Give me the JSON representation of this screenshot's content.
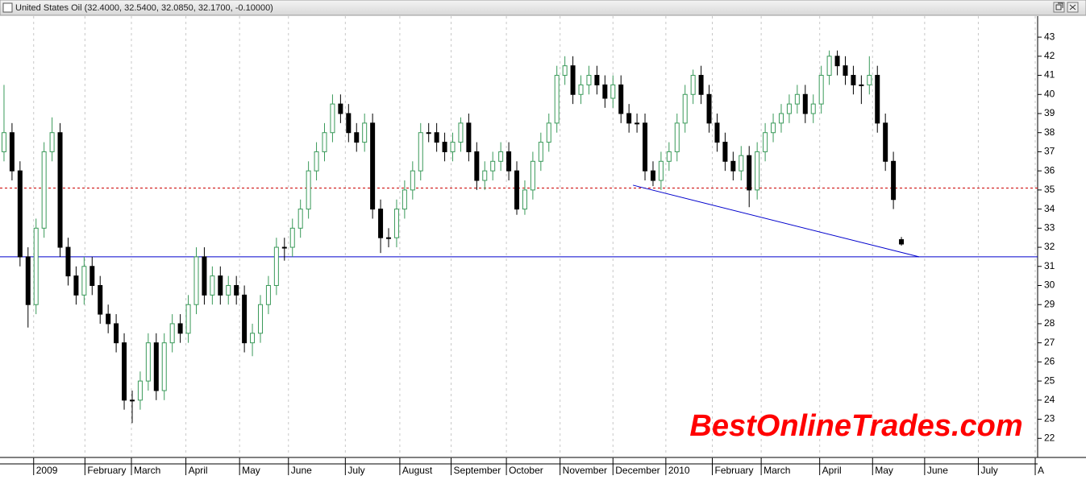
{
  "chart_data": {
    "type": "candlestick",
    "title": "United States Oil (32.4000, 32.5400, 32.0850, 32.1700, -0.10000)",
    "watermark": "BestOnlineTrades.com",
    "x": [
      0,
      1,
      2,
      3,
      4,
      5,
      6,
      7,
      8,
      9,
      10,
      11,
      12,
      13,
      14,
      15,
      16,
      17,
      18,
      19,
      20,
      21,
      22,
      23,
      24,
      25,
      26,
      27,
      28,
      29,
      30,
      31,
      32,
      33,
      34,
      35,
      36,
      37,
      38,
      39,
      40,
      41,
      42,
      43,
      44,
      45,
      46,
      47,
      48,
      49,
      50,
      51,
      52,
      53,
      54,
      55,
      56,
      57,
      58,
      59,
      60,
      61,
      62,
      63,
      64,
      65,
      66,
      67,
      68,
      69,
      70,
      71,
      72,
      73,
      74,
      75,
      76,
      77,
      78,
      79,
      80,
      81,
      82,
      83,
      84,
      85,
      86,
      87,
      88,
      89,
      90,
      91,
      92,
      93,
      94,
      95,
      96,
      97,
      98,
      99,
      100,
      101,
      102,
      103,
      104,
      105,
      106,
      107,
      108,
      109,
      110,
      111,
      112
    ],
    "open": [
      37,
      38,
      36,
      31.5,
      29,
      33,
      37,
      38,
      32,
      30.5,
      29.5,
      31,
      30,
      28.5,
      28,
      27,
      24,
      24,
      25,
      27,
      24.5,
      27,
      28,
      27.5,
      29,
      31.5,
      29.5,
      30.5,
      29.5,
      30,
      29.5,
      27,
      27.5,
      29,
      30,
      32,
      32,
      33,
      34,
      36,
      37,
      38,
      39.5,
      39,
      38,
      37.5,
      38.5,
      34,
      32.5,
      32.5,
      34,
      35,
      36,
      38,
      38,
      37.5,
      37,
      37.5,
      38.5,
      37,
      35.5,
      36,
      36.5,
      37,
      36,
      34,
      35,
      36.5,
      37.5,
      38.5,
      41,
      41.5,
      40,
      40.5,
      41,
      40.5,
      39.8,
      40.5,
      39,
      38.5,
      38.5,
      36,
      35.5,
      36.5,
      37,
      38.5,
      40,
      41,
      40,
      38.5,
      37.5,
      36.5,
      36,
      36.8,
      35,
      37,
      38,
      38.5,
      39,
      39.5,
      40,
      39,
      39.5,
      41,
      42,
      41.5,
      41,
      40.5,
      40.5,
      41,
      38.5,
      36.5,
      32.4
    ],
    "high": [
      40.5,
      38.5,
      36.5,
      32,
      33.5,
      37.5,
      38.8,
      38.5,
      32.5,
      31,
      31.5,
      31.5,
      30.5,
      29,
      28.5,
      27.5,
      24.5,
      25.5,
      27.5,
      27.5,
      27.5,
      28.5,
      28.5,
      29.5,
      32,
      32,
      31,
      31,
      30.5,
      30.5,
      30,
      28,
      29.5,
      30.5,
      32.5,
      32.5,
      33.5,
      34.5,
      36.5,
      37.5,
      38.5,
      40,
      40,
      39.5,
      38.5,
      39,
      39,
      34.5,
      33,
      34.5,
      35.5,
      36.5,
      38.5,
      38.5,
      38.5,
      38,
      38,
      38.8,
      39,
      37.5,
      36.5,
      37,
      37.5,
      37.5,
      36.5,
      35.5,
      37,
      38,
      39,
      41.5,
      42,
      42,
      41,
      41.5,
      41.5,
      41,
      41,
      41,
      39.5,
      39,
      39,
      36.5,
      37,
      37.5,
      39,
      40.5,
      41.3,
      41.5,
      40.5,
      39,
      38,
      37,
      37.3,
      37.3,
      37.5,
      38.5,
      39,
      39.5,
      40,
      40.5,
      40.5,
      40,
      41.5,
      42.3,
      42.3,
      42,
      41.5,
      41,
      42,
      41.5,
      39,
      37,
      32.54
    ],
    "low": [
      36.5,
      35.5,
      31,
      27.8,
      28.5,
      32.5,
      36.5,
      31.5,
      30,
      29,
      29,
      29.5,
      28,
      27.5,
      26.5,
      23.5,
      22.8,
      23.5,
      24.5,
      24,
      24,
      26.5,
      27,
      27,
      28.5,
      29,
      29,
      29,
      29,
      29,
      26.5,
      26.3,
      27,
      28.5,
      29.5,
      31.3,
      31.5,
      32.5,
      33.5,
      35.5,
      36.5,
      37.5,
      38.5,
      37.5,
      37,
      37,
      33.5,
      31.7,
      32,
      32,
      33.5,
      34.5,
      35.5,
      37.5,
      37,
      36.5,
      36.5,
      37,
      36.5,
      35,
      35,
      35.5,
      36,
      35.5,
      33.7,
      33.7,
      34.5,
      36,
      37,
      38,
      40.5,
      39.5,
      39.5,
      40,
      40,
      39.3,
      39.3,
      38.5,
      38,
      38,
      35.5,
      35.2,
      35,
      36,
      36.5,
      38,
      39.5,
      39.5,
      38,
      37,
      36,
      35.5,
      35.5,
      34.1,
      34.5,
      36.5,
      37.5,
      38,
      38.5,
      39,
      38.5,
      38.5,
      39,
      40.5,
      41,
      40.5,
      40,
      39.5,
      40,
      38,
      36,
      34,
      32.085
    ],
    "close": [
      38,
      36,
      31.5,
      29,
      33,
      37,
      38,
      32,
      30.5,
      29.5,
      31,
      30,
      28.5,
      28,
      27,
      24,
      24,
      25,
      27,
      24.5,
      27,
      28,
      27.5,
      29,
      31.5,
      29.5,
      30.5,
      29.5,
      30,
      29.5,
      27,
      27.5,
      29,
      30,
      32,
      32,
      33,
      34,
      36,
      37,
      38,
      39.5,
      39,
      38,
      37.5,
      38.5,
      34,
      32.5,
      32.5,
      34,
      35,
      36,
      38,
      38,
      37.5,
      37,
      37.5,
      38.5,
      37,
      35.5,
      36,
      36.5,
      37,
      36,
      34,
      35,
      36.5,
      37.5,
      38.5,
      41,
      41.5,
      40,
      40.5,
      41,
      40.5,
      39.8,
      40.5,
      39,
      38.5,
      38.5,
      36,
      35.5,
      36.5,
      37,
      38.5,
      40,
      41,
      40,
      38.5,
      37.5,
      36.5,
      36,
      36.8,
      35,
      37,
      38,
      38.5,
      39,
      39.5,
      40,
      39,
      39.5,
      41,
      42,
      41.5,
      41,
      40.5,
      40.5,
      41,
      38.5,
      36.5,
      34.5,
      32.17
    ],
    "up_color": "#3a9a5a",
    "down_color": "#000000",
    "xlim": [
      -0.5,
      129
    ],
    "ylim": [
      21,
      44.1
    ],
    "yticks": [
      22,
      23,
      24,
      25,
      26,
      27,
      28,
      29,
      30,
      31,
      32,
      33,
      34,
      35,
      36,
      37,
      38,
      39,
      40,
      41,
      42,
      43
    ],
    "xticks": [
      {
        "value": 3.7,
        "label": "2009"
      },
      {
        "value": 10.1,
        "label": "February"
      },
      {
        "value": 15.9,
        "label": "March"
      },
      {
        "value": 22.7,
        "label": "April"
      },
      {
        "value": 29.4,
        "label": "May"
      },
      {
        "value": 35.5,
        "label": "June"
      },
      {
        "value": 42.6,
        "label": "July"
      },
      {
        "value": 49.4,
        "label": "August"
      },
      {
        "value": 55.8,
        "label": "September"
      },
      {
        "value": 62.7,
        "label": "October"
      },
      {
        "value": 69.4,
        "label": "November"
      },
      {
        "value": 76,
        "label": "December"
      },
      {
        "value": 82.6,
        "label": "2010"
      },
      {
        "value": 88.4,
        "label": "February"
      },
      {
        "value": 94.5,
        "label": "March"
      },
      {
        "value": 101.8,
        "label": "April"
      },
      {
        "value": 108.4,
        "label": "May"
      },
      {
        "value": 114.9,
        "label": "June"
      },
      {
        "value": 121.6,
        "label": "July"
      },
      {
        "value": 128.7,
        "label": "A"
      }
    ],
    "grid": true,
    "hlines": [
      {
        "value": 35.1,
        "color": "#cc0000",
        "style": "dotted"
      },
      {
        "value": 31.5,
        "color": "#0000cc",
        "style": "solid"
      }
    ],
    "trendline": {
      "x": [
        78.5,
        114.2
      ],
      "y": [
        35.25,
        31.5
      ],
      "color": "#0000cc"
    }
  }
}
